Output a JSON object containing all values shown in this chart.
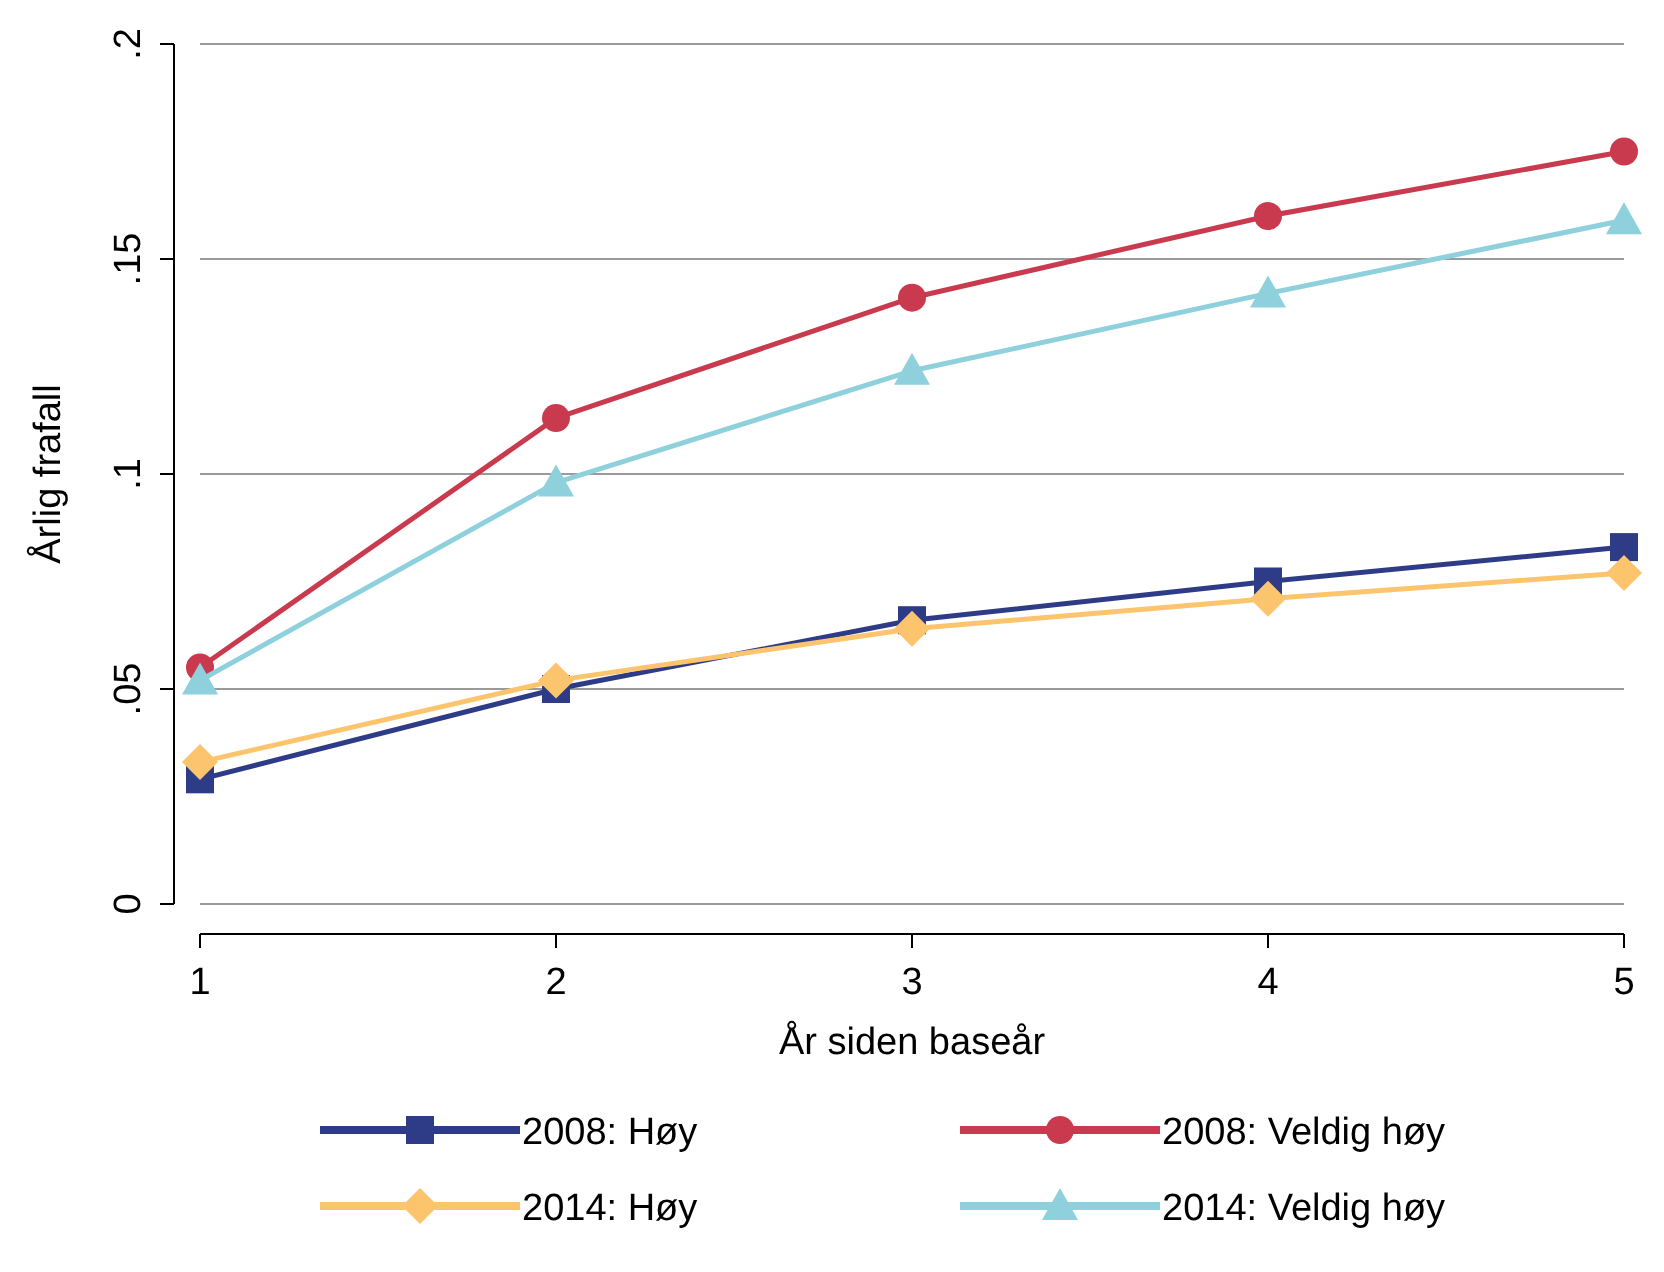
{
  "chart_data": {
    "type": "line",
    "xlabel": "År siden baseår",
    "ylabel": "Årlig frafall",
    "x": [
      1,
      2,
      3,
      4,
      5
    ],
    "xlim": [
      1,
      5
    ],
    "xticks": [
      1,
      2,
      3,
      4,
      5
    ],
    "ylim": [
      0,
      0.2
    ],
    "yticks": [
      {
        "value": 0,
        "label": "0"
      },
      {
        "value": 0.05,
        "label": ".05"
      },
      {
        "value": 0.1,
        "label": ".1"
      },
      {
        "value": 0.15,
        "label": ".15"
      },
      {
        "value": 0.2,
        "label": ".2"
      }
    ],
    "grid": "y",
    "legend": "bottom",
    "line_style": "solid",
    "series": [
      {
        "name": "2008: Høy",
        "color": "#2e3c87",
        "marker": "square",
        "values": [
          0.029,
          0.05,
          0.066,
          0.075,
          0.083
        ]
      },
      {
        "name": "2008: Veldig høy",
        "color": "#c93a4f",
        "marker": "circle",
        "values": [
          0.055,
          0.113,
          0.141,
          0.16,
          0.175
        ]
      },
      {
        "name": "2014: Høy",
        "color": "#fcc46c",
        "marker": "diamond",
        "values": [
          0.033,
          0.052,
          0.064,
          0.071,
          0.077
        ]
      },
      {
        "name": "2014: Veldig høy",
        "color": "#8ed0dc",
        "marker": "triangle",
        "values": [
          0.052,
          0.098,
          0.124,
          0.142,
          0.159
        ]
      }
    ]
  }
}
